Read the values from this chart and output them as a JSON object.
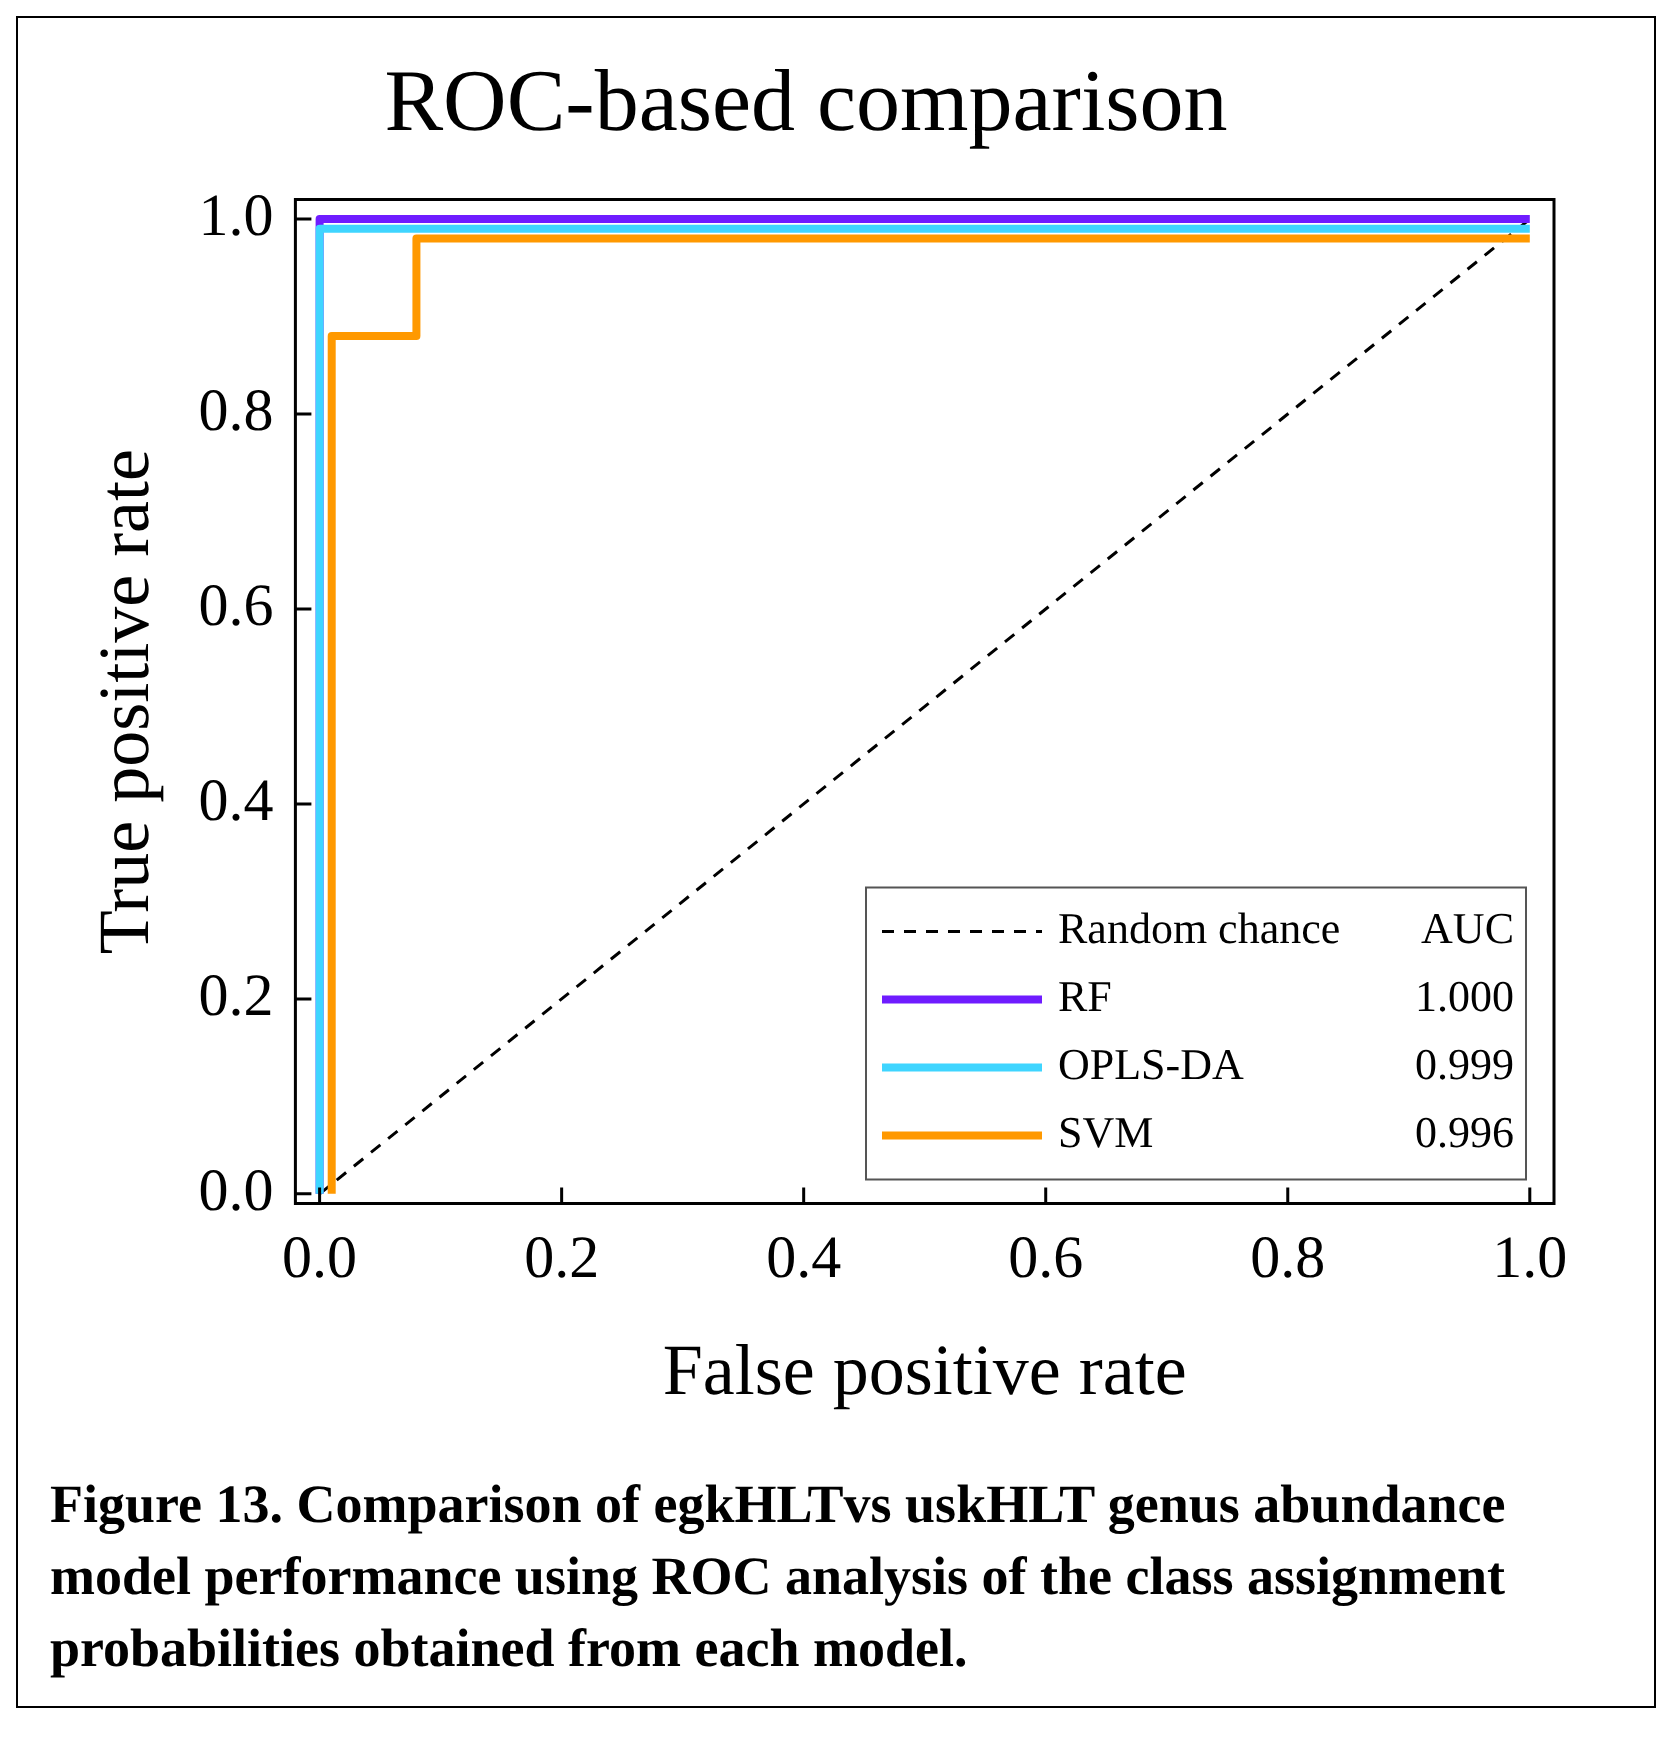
{
  "chart_data": {
    "type": "line",
    "title": "ROC-based comparison",
    "xlabel": "False positive rate",
    "ylabel": "True positive rate",
    "xlim": [
      -0.02,
      1.02
    ],
    "ylim": [
      -0.01,
      1.02
    ],
    "xticks": [
      {
        "value": 0,
        "label": "0.0"
      },
      {
        "value": 0.2,
        "label": "0.2"
      },
      {
        "value": 0.4,
        "label": "0.4"
      },
      {
        "value": 0.6,
        "label": "0.6"
      },
      {
        "value": 0.8,
        "label": "0.8"
      },
      {
        "value": 1,
        "label": "1.0"
      }
    ],
    "yticks": [
      {
        "value": 0,
        "label": "0.0"
      },
      {
        "value": 0.2,
        "label": "0.2"
      },
      {
        "value": 0.4,
        "label": "0.4"
      },
      {
        "value": 0.6,
        "label": "0.6"
      },
      {
        "value": 0.8,
        "label": "0.8"
      },
      {
        "value": 1,
        "label": "1.0"
      }
    ],
    "grid": false,
    "legend": "bottom right",
    "marker": "none",
    "line_style": "solid",
    "series": [
      {
        "name": "Random chance",
        "color": "#000000",
        "line_style": "dashed",
        "x": [
          0,
          1
        ],
        "values": [
          0,
          1
        ]
      },
      {
        "name": "RF",
        "color": "#6f1cff",
        "x": [
          0,
          0,
          1
        ],
        "values": [
          0,
          1,
          1
        ]
      },
      {
        "name": "OPLS-DA",
        "color": "#3fd5ff",
        "x": [
          0,
          0,
          1
        ],
        "values": [
          0,
          0.99,
          0.99
        ]
      },
      {
        "name": "SVM",
        "color": "#ff9900",
        "x": [
          0.01,
          0.01,
          0.08,
          0.08,
          1
        ],
        "values": [
          0,
          0.88,
          0.88,
          0.98,
          0.98
        ]
      }
    ],
    "annotations": [
      "AUC",
      "1.000",
      "0.999",
      "0.996",
      "Figure 13. Comparison of egkHLTvs uskHLT genus abundance model performance using ROC analysis of the class assignment probabilities obtained from each model."
    ]
  }
}
